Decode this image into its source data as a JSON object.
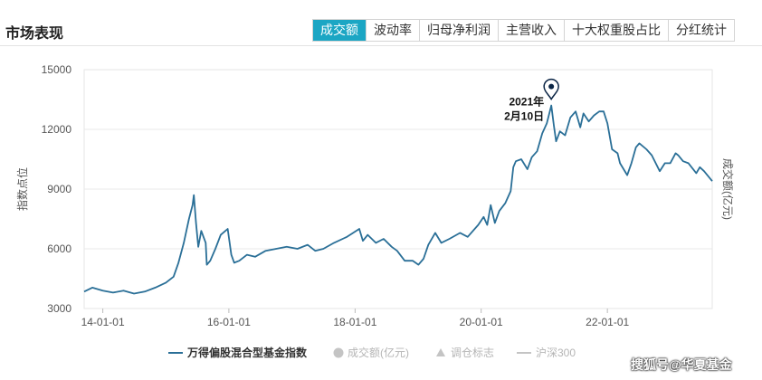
{
  "header": {
    "title": "市场表现",
    "tabs": [
      "成交额",
      "波动率",
      "归母净利润",
      "主营收入",
      "十大权重股占比",
      "分红统计"
    ],
    "active_tab": 0
  },
  "watermark": "搜狐号@华夏基金",
  "colors": {
    "index_line": "#2a6f97",
    "active_tab": "#1ba6c4",
    "marker": "#0b2545"
  },
  "chart_data": {
    "type": "line",
    "ylabel_left": "指数点位",
    "ylabel_right": "成交额(亿元)",
    "y_ticks": [
      3000,
      6000,
      9000,
      12000,
      15000
    ],
    "ylim": [
      3000,
      15000
    ],
    "x_ticks": [
      {
        "date": "2014-01-01",
        "label": "14-01-01"
      },
      {
        "date": "2016-01-01",
        "label": "16-01-01"
      },
      {
        "date": "2018-01-01",
        "label": "18-01-01"
      },
      {
        "date": "2020-01-01",
        "label": "20-01-01"
      },
      {
        "date": "2022-01-01",
        "label": "22-01-01"
      }
    ],
    "xlim": [
      "2013-09-15",
      "2023-08-31"
    ],
    "grid": "horizontal",
    "annotation": {
      "date": "2021-02-10",
      "value": 13200,
      "text_lines": [
        "2021年",
        "2月10日"
      ]
    },
    "legend_position": "bottom",
    "legend": [
      {
        "label": "万得偏股混合型基金指数",
        "marker": "line",
        "active": true
      },
      {
        "label": "成交额(亿元)",
        "marker": "circle",
        "active": false
      },
      {
        "label": "调仓标志",
        "marker": "triangle",
        "active": false
      },
      {
        "label": "沪深300",
        "marker": "line",
        "active": false
      }
    ],
    "series": [
      {
        "name": "万得偏股混合型基金指数",
        "points": [
          [
            "2013-09-15",
            3850
          ],
          [
            "2013-11-01",
            4050
          ],
          [
            "2014-01-01",
            3900
          ],
          [
            "2014-03-01",
            3800
          ],
          [
            "2014-05-01",
            3900
          ],
          [
            "2014-07-01",
            3750
          ],
          [
            "2014-09-01",
            3850
          ],
          [
            "2014-11-01",
            4050
          ],
          [
            "2015-01-01",
            4300
          ],
          [
            "2015-02-15",
            4600
          ],
          [
            "2015-03-15",
            5300
          ],
          [
            "2015-04-15",
            6300
          ],
          [
            "2015-05-15",
            7500
          ],
          [
            "2015-06-05",
            8200
          ],
          [
            "2015-06-12",
            8700
          ],
          [
            "2015-06-25",
            7300
          ],
          [
            "2015-07-08",
            6100
          ],
          [
            "2015-07-25",
            6900
          ],
          [
            "2015-08-20",
            6300
          ],
          [
            "2015-08-26",
            5200
          ],
          [
            "2015-09-15",
            5400
          ],
          [
            "2015-10-15",
            6000
          ],
          [
            "2015-11-15",
            6700
          ],
          [
            "2015-12-25",
            7000
          ],
          [
            "2016-01-15",
            5700
          ],
          [
            "2016-02-01",
            5300
          ],
          [
            "2016-03-01",
            5400
          ],
          [
            "2016-04-15",
            5700
          ],
          [
            "2016-06-01",
            5600
          ],
          [
            "2016-08-01",
            5900
          ],
          [
            "2016-10-01",
            6000
          ],
          [
            "2016-12-01",
            6100
          ],
          [
            "2017-02-01",
            6000
          ],
          [
            "2017-04-01",
            6200
          ],
          [
            "2017-05-15",
            5900
          ],
          [
            "2017-07-01",
            6000
          ],
          [
            "2017-09-01",
            6300
          ],
          [
            "2017-11-15",
            6600
          ],
          [
            "2018-01-25",
            7000
          ],
          [
            "2018-02-15",
            6400
          ],
          [
            "2018-03-15",
            6700
          ],
          [
            "2018-05-01",
            6300
          ],
          [
            "2018-06-15",
            6500
          ],
          [
            "2018-08-01",
            6100
          ],
          [
            "2018-09-01",
            5900
          ],
          [
            "2018-10-15",
            5400
          ],
          [
            "2018-12-01",
            5400
          ],
          [
            "2019-01-03",
            5200
          ],
          [
            "2019-02-01",
            5500
          ],
          [
            "2019-03-01",
            6200
          ],
          [
            "2019-04-10",
            6800
          ],
          [
            "2019-05-15",
            6300
          ],
          [
            "2019-07-01",
            6500
          ],
          [
            "2019-09-01",
            6800
          ],
          [
            "2019-10-15",
            6600
          ],
          [
            "2019-12-15",
            7200
          ],
          [
            "2020-01-15",
            7600
          ],
          [
            "2020-02-05",
            7200
          ],
          [
            "2020-02-25",
            8200
          ],
          [
            "2020-03-20",
            7300
          ],
          [
            "2020-04-15",
            7900
          ],
          [
            "2020-05-20",
            8300
          ],
          [
            "2020-06-20",
            8900
          ],
          [
            "2020-07-05",
            10100
          ],
          [
            "2020-07-20",
            10400
          ],
          [
            "2020-08-20",
            10500
          ],
          [
            "2020-09-25",
            10000
          ],
          [
            "2020-10-20",
            10600
          ],
          [
            "2020-11-20",
            10900
          ],
          [
            "2020-12-20",
            11800
          ],
          [
            "2021-01-15",
            12300
          ],
          [
            "2021-02-10",
            13200
          ],
          [
            "2021-02-25",
            12200
          ],
          [
            "2021-03-10",
            11400
          ],
          [
            "2021-04-01",
            11900
          ],
          [
            "2021-05-01",
            11700
          ],
          [
            "2021-06-01",
            12600
          ],
          [
            "2021-07-01",
            12900
          ],
          [
            "2021-07-28",
            12100
          ],
          [
            "2021-08-15",
            12800
          ],
          [
            "2021-09-15",
            12400
          ],
          [
            "2021-10-15",
            12700
          ],
          [
            "2021-11-15",
            12900
          ],
          [
            "2021-12-10",
            12900
          ],
          [
            "2022-01-01",
            12300
          ],
          [
            "2022-01-28",
            11000
          ],
          [
            "2022-03-01",
            10800
          ],
          [
            "2022-03-15",
            10300
          ],
          [
            "2022-04-26",
            9700
          ],
          [
            "2022-05-20",
            10300
          ],
          [
            "2022-06-15",
            11100
          ],
          [
            "2022-07-05",
            11300
          ],
          [
            "2022-08-15",
            11000
          ],
          [
            "2022-09-15",
            10700
          ],
          [
            "2022-10-31",
            9900
          ],
          [
            "2022-11-30",
            10300
          ],
          [
            "2022-12-31",
            10300
          ],
          [
            "2023-01-31",
            10800
          ],
          [
            "2023-02-15",
            10700
          ],
          [
            "2023-03-15",
            10400
          ],
          [
            "2023-04-15",
            10300
          ],
          [
            "2023-05-31",
            9800
          ],
          [
            "2023-06-20",
            10100
          ],
          [
            "2023-07-15",
            9900
          ],
          [
            "2023-08-31",
            9400
          ]
        ]
      }
    ]
  }
}
